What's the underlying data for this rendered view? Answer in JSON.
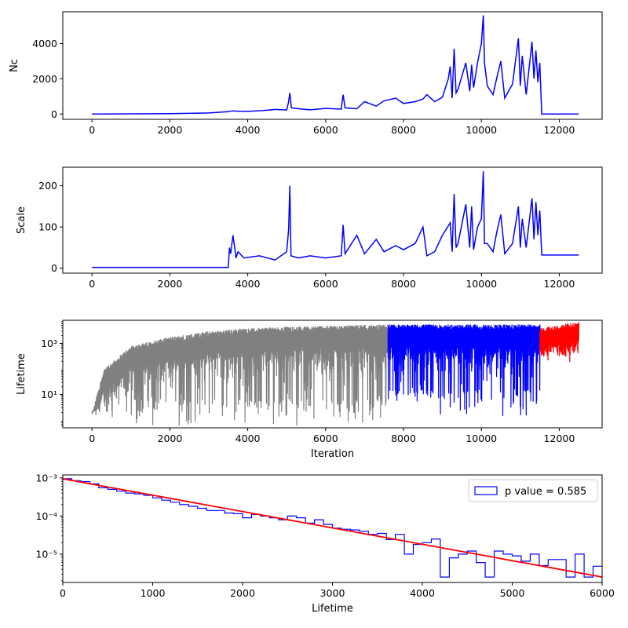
{
  "figure": {
    "colors": {
      "blue": "#0000ff",
      "red": "#ff0000",
      "gray": "#808080",
      "black": "#000000"
    }
  },
  "chart_data": [
    {
      "type": "line",
      "title": "",
      "xlabel": "",
      "ylabel": "Nc",
      "xlim": [
        -750,
        13100
      ],
      "ylim": [
        -300,
        5800
      ],
      "xticks": [
        0,
        2000,
        4000,
        6000,
        8000,
        10000,
        12000
      ],
      "yticks": [
        0,
        2000,
        4000
      ],
      "ytick_labels": [
        "0",
        "2000",
        "4000"
      ],
      "series": [
        {
          "color": "#0000ff",
          "x": [
            0,
            2000,
            3000,
            3500,
            3600,
            3800,
            4000,
            4400,
            4700,
            5000,
            5050,
            5080,
            5120,
            5300,
            5600,
            6000,
            6400,
            6450,
            6500,
            6800,
            7000,
            7300,
            7500,
            7800,
            8000,
            8300,
            8500,
            8600,
            8800,
            9000,
            9150,
            9200,
            9250,
            9300,
            9350,
            9400,
            9600,
            9700,
            9750,
            9800,
            9900,
            10000,
            10050,
            10080,
            10150,
            10300,
            10400,
            10500,
            10600,
            10800,
            10950,
            11000,
            11050,
            11150,
            11300,
            11350,
            11400,
            11450,
            11500,
            11550,
            12000,
            12500
          ],
          "y": [
            0,
            20,
            60,
            130,
            180,
            160,
            150,
            200,
            260,
            230,
            700,
            1200,
            350,
            300,
            240,
            320,
            280,
            1100,
            350,
            300,
            700,
            450,
            750,
            900,
            600,
            700,
            850,
            1100,
            700,
            950,
            2000,
            2700,
            900,
            3700,
            1200,
            1400,
            2900,
            1300,
            2800,
            1500,
            2900,
            4000,
            5600,
            2900,
            1600,
            1100,
            2100,
            3000,
            900,
            1700,
            4300,
            1600,
            3300,
            1100,
            4100,
            2000,
            3600,
            1800,
            2900,
            0,
            0,
            0
          ]
        }
      ]
    },
    {
      "type": "line",
      "title": "",
      "xlabel": "",
      "ylabel": "Scale",
      "xlim": [
        -750,
        13100
      ],
      "ylim": [
        -12,
        245
      ],
      "xticks": [
        0,
        2000,
        4000,
        6000,
        8000,
        10000,
        12000
      ],
      "yticks": [
        0,
        100,
        200
      ],
      "ytick_labels": [
        "0",
        "100",
        "200"
      ],
      "series": [
        {
          "color": "#0000ff",
          "x": [
            0,
            3500,
            3530,
            3560,
            3620,
            3700,
            3750,
            3900,
            4300,
            4700,
            5000,
            5050,
            5080,
            5110,
            5300,
            5600,
            6000,
            6400,
            6450,
            6500,
            6800,
            7000,
            7300,
            7500,
            7800,
            8000,
            8300,
            8500,
            8600,
            8800,
            9000,
            9200,
            9250,
            9300,
            9350,
            9400,
            9600,
            9700,
            9750,
            9800,
            9900,
            10000,
            10050,
            10080,
            10150,
            10300,
            10400,
            10500,
            10600,
            10800,
            10950,
            11000,
            11050,
            11150,
            11300,
            11350,
            11400,
            11450,
            11500,
            11550,
            12000,
            12500
          ],
          "y": [
            2,
            2,
            50,
            35,
            80,
            25,
            40,
            25,
            30,
            20,
            40,
            95,
            200,
            30,
            25,
            30,
            25,
            30,
            105,
            35,
            80,
            35,
            70,
            40,
            55,
            45,
            60,
            100,
            30,
            40,
            80,
            110,
            40,
            180,
            50,
            60,
            155,
            50,
            150,
            45,
            100,
            120,
            235,
            60,
            60,
            40,
            90,
            130,
            35,
            60,
            150,
            50,
            120,
            50,
            170,
            70,
            160,
            80,
            140,
            32,
            32,
            32
          ]
        }
      ]
    },
    {
      "type": "line",
      "title": "",
      "xlabel": "Iteration",
      "ylabel": "Lifetime",
      "yscale": "log",
      "xlim": [
        -750,
        13100
      ],
      "ylim": [
        0.5,
        8000
      ],
      "xticks": [
        0,
        2000,
        4000,
        6000,
        8000,
        10000,
        12000
      ],
      "yticks": [
        10,
        1000
      ],
      "ytick_labels": [
        "10¹",
        "10³"
      ],
      "segments": [
        {
          "color": "#808080",
          "x_range": [
            0,
            7600
          ],
          "lower_envelope": [
            0.6,
            2
          ],
          "upper_envelope_x": [
            0,
            300,
            1000,
            2000,
            3000,
            4000,
            5000,
            6000,
            7000,
            7600
          ],
          "upper_envelope_y": [
            2,
            100,
            800,
            1800,
            3000,
            4000,
            4500,
            5000,
            5300,
            5500
          ]
        },
        {
          "color": "#0000ff",
          "x_range": [
            7600,
            11500
          ],
          "lower_envelope": [
            0.8,
            5
          ],
          "upper_envelope_x": [
            7600,
            11500
          ],
          "upper_envelope_y": [
            5500,
            5500
          ]
        },
        {
          "color": "#ff0000",
          "x_range": [
            11500,
            12500
          ],
          "lower_envelope": [
            150,
            300
          ],
          "upper_envelope_x": [
            11500,
            12500
          ],
          "upper_envelope_y": [
            4000,
            7000
          ]
        }
      ]
    },
    {
      "type": "histogram",
      "title": "",
      "xlabel": "Lifetime",
      "ylabel": "",
      "yscale": "log",
      "xlim": [
        0,
        6000
      ],
      "ylim": [
        1.8e-06,
        0.0012
      ],
      "xticks": [
        0,
        1000,
        2000,
        3000,
        4000,
        5000,
        6000
      ],
      "yticks": [
        1e-05,
        0.0001,
        0.001
      ],
      "ytick_labels": [
        "10⁻⁵",
        "10⁻⁴",
        "10⁻³"
      ],
      "legend": {
        "label": "p value = 0.585",
        "location": "upper-right"
      },
      "bin_width": 100,
      "bin_start": 0,
      "hist_values": [
        0.00095,
        0.00085,
        0.0008,
        0.0007,
        0.00055,
        0.0005,
        0.00045,
        0.0004,
        0.00038,
        0.00035,
        0.0003,
        0.00026,
        0.00023,
        0.0002,
        0.00018,
        0.00016,
        0.00014,
        0.00014,
        0.00012,
        0.000115,
        9e-05,
        0.00011,
        0.0001,
        9e-05,
        8e-05,
        0.0001,
        9e-05,
        6.5e-05,
        8e-05,
        6e-05,
        4.8e-05,
        4.5e-05,
        4.3e-05,
        4e-05,
        3.3e-05,
        3.5e-05,
        2.4e-05,
        3.3e-05,
        1e-05,
        1.8e-05,
        2e-05,
        2.5e-05,
        2.5e-06,
        8e-06,
        1e-05,
        1.2e-05,
        6e-06,
        2.5e-06,
        1.2e-05,
        1e-05,
        9e-06,
        6.5e-06,
        1e-05,
        5e-06,
        7.2e-06,
        7.2e-06,
        2.5e-06,
        1e-05,
        2.5e-06,
        4.8e-06
      ],
      "fit_line": {
        "color": "#ff0000",
        "x": [
          0,
          6000
        ],
        "y": [
          0.00095,
          2.5e-06
        ]
      }
    }
  ]
}
